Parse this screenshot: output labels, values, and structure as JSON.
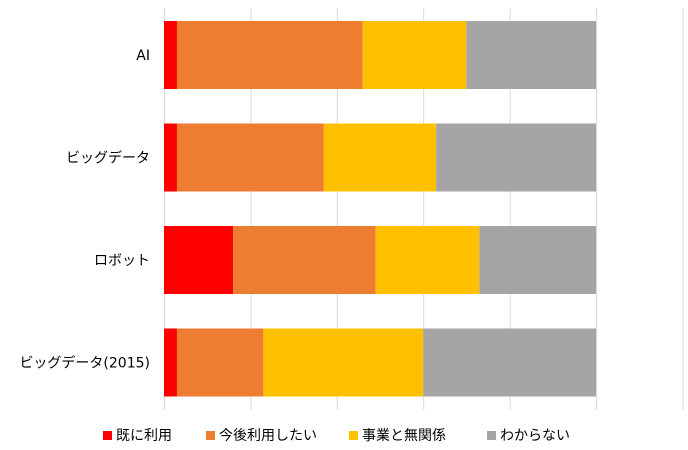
{
  "chart_data": {
    "type": "bar",
    "orientation": "horizontal",
    "stacked": "percent",
    "categories": [
      "AI",
      "ビッグデータ",
      "ロボット",
      "ビッグデータ(2015)"
    ],
    "series": [
      {
        "name": "既に利用",
        "color": "#ff0000",
        "values": [
          3,
          3,
          16,
          3
        ]
      },
      {
        "name": "今後利用したい",
        "color": "#ed7d31",
        "values": [
          43,
          34,
          33,
          20
        ]
      },
      {
        "name": "事業と無関係",
        "color": "#ffc000",
        "values": [
          24,
          26,
          24,
          37
        ]
      },
      {
        "name": "わからない",
        "color": "#a5a5a5",
        "values": [
          30,
          37,
          27,
          40
        ]
      }
    ],
    "xlim": [
      0,
      120
    ],
    "x_tick_step": 20,
    "grid": "vertical",
    "legend": "bottom",
    "title": "",
    "xlabel": "",
    "ylabel": ""
  }
}
